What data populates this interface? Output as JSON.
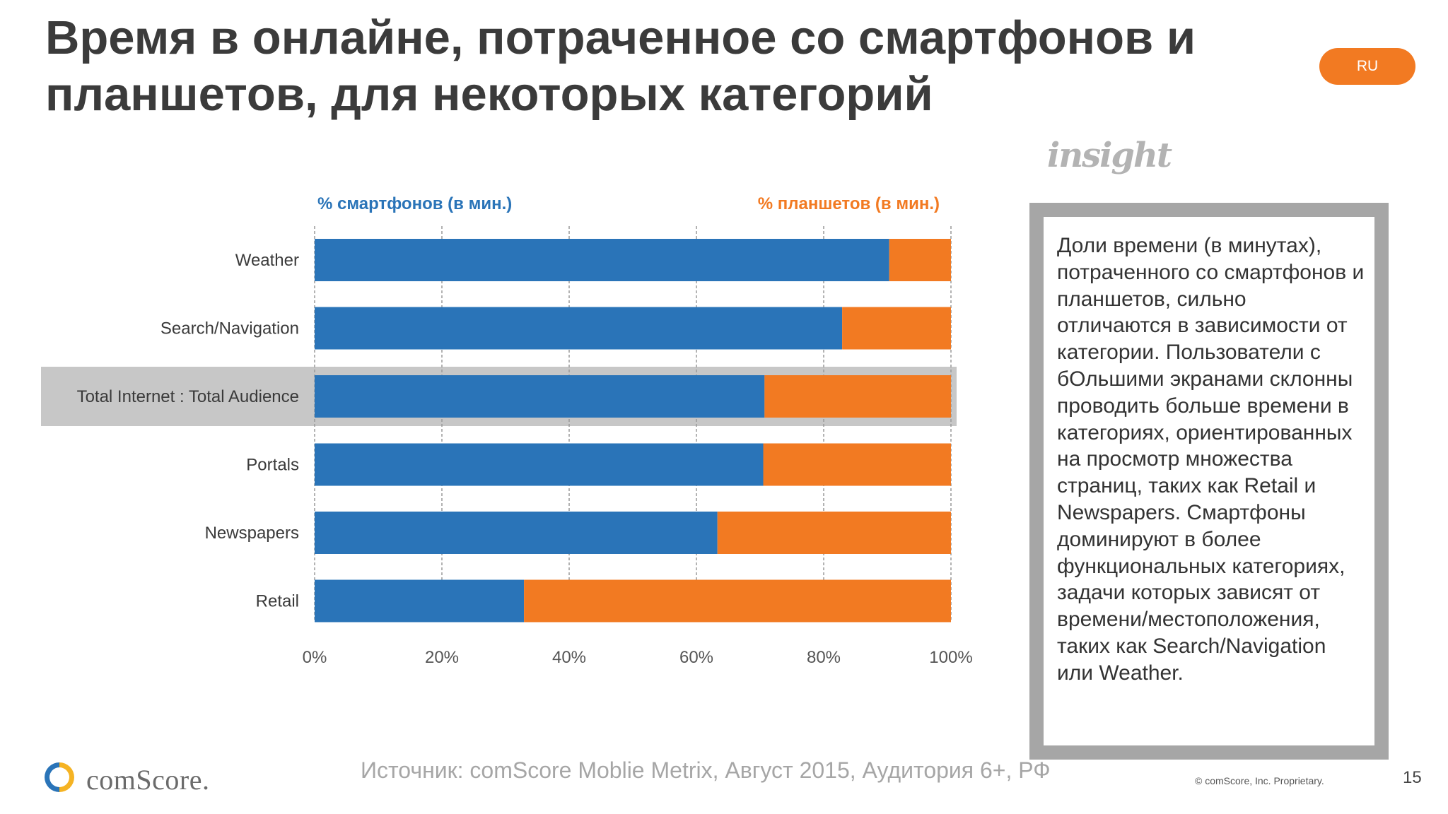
{
  "title": "Время в онлайне, потраченное со смартфонов и планшетов, для некоторых категорий",
  "badge": "RU",
  "insight_logo": "insight",
  "note": "Доли времени (в минутах), потраченного со смартфонов и планшетов, сильно отличаются в зависимости от категории. Пользователи с бОльшими экранами склонны проводить больше времени в категориях, ориентированных на просмотр множества страниц, таких как Retail и Newspapers. Смартфоны доминируют в более функциональных категориях, задачи которых зависят от времени/местоположения, таких как Search/Navigation или Weather.",
  "source": "Источник: comScore Moblie Metrix, Август 2015, Аудитория 6+, РФ",
  "brand": "comScore.",
  "copyright": "© comScore, Inc. Proprietary.",
  "page_number": "15",
  "chart_data": {
    "type": "bar",
    "orientation": "horizontal",
    "stacked": "100%",
    "categories": [
      "Weather",
      "Search/Navigation",
      "Total Internet : Total Audience",
      "Portals",
      "Newspapers",
      "Retail"
    ],
    "highlighted_category": "Total Internet : Total Audience",
    "series": [
      {
        "name": "% смартфонов (в мин.)",
        "values": [
          90.3,
          82.9,
          70.7,
          70.5,
          63.3,
          32.9
        ],
        "color": "#2a74b8"
      },
      {
        "name": "% планшетов (в мин.)",
        "values": [
          9.7,
          17.1,
          29.3,
          29.5,
          36.7,
          67.1
        ],
        "color": "#f27a22"
      }
    ],
    "xlim": [
      0,
      100
    ],
    "xticks": [
      "0%",
      "20%",
      "40%",
      "60%",
      "80%",
      "100%"
    ],
    "grid": "vertical dashed",
    "legend_placement": "top"
  }
}
